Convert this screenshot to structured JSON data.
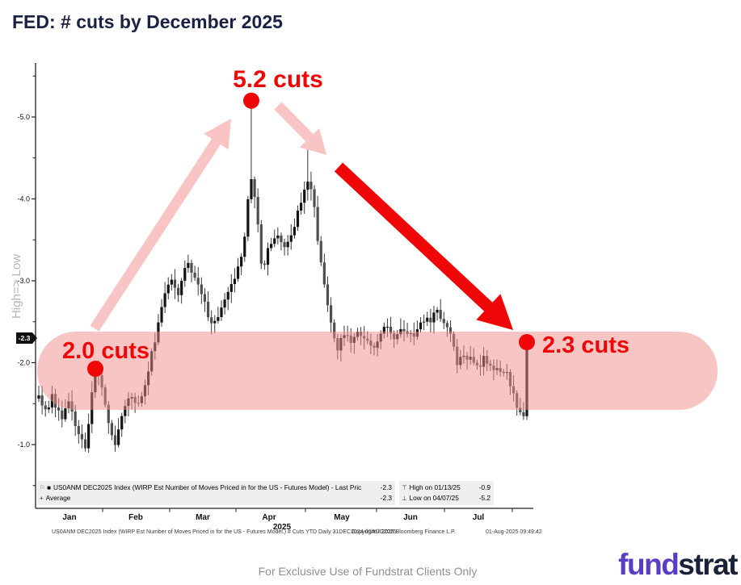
{
  "title": "FED: # cuts by December 2025",
  "colors": {
    "accent_red": "#ef0606",
    "pink_band": "rgba(242,139,139,0.50)",
    "pink_arrow": "rgba(244,148,148,0.55)",
    "title_navy": "#1b2142",
    "logo_purple": "#5b3cc4",
    "logo_navy": "#1a2238",
    "axis_gray": "#b5b5b5"
  },
  "chart_data": {
    "type": "candlestick",
    "title": "FED: # cuts by December 2025",
    "period": "Daily 31DEC2024-01AUG2025",
    "y_axis": {
      "label": "High=> Low",
      "inverted": true,
      "tick_values": [
        -5,
        -4,
        -3,
        -2,
        -1
      ],
      "tick_labels": [
        "-5.0",
        "-4.0",
        "-3.0",
        "-2.0",
        "-1.0"
      ],
      "minor_tick_values": [
        -5.5,
        -4.5,
        -3.5,
        -2.5,
        -1.5,
        -0.5
      ],
      "last_price_tag": "-2.3"
    },
    "x_axis": {
      "month_labels": [
        "Jan",
        "Feb",
        "Mar",
        "Apr",
        "May",
        "Jun",
        "Jul"
      ],
      "year_label": "2025"
    },
    "series": {
      "name": "US0ANM DEC2025 Index (WIRP Est Number of Moves Priced in for the US - Futures Model)",
      "last_price": -2.3,
      "average": -2.3,
      "high": {
        "date": "01/13/25",
        "value": -0.9
      },
      "low": {
        "date": "04/07/25",
        "value": -5.2
      },
      "bar_count": 148,
      "close_path": [
        [
          0.0,
          -1.6
        ],
        [
          0.012,
          -1.38
        ],
        [
          0.028,
          -1.58
        ],
        [
          0.045,
          -1.32
        ],
        [
          0.062,
          -1.52
        ],
        [
          0.078,
          -1.18
        ],
        [
          0.095,
          -0.98
        ],
        [
          0.105,
          -1.35
        ],
        [
          0.115,
          -2.0
        ],
        [
          0.126,
          -1.82
        ],
        [
          0.14,
          -1.3
        ],
        [
          0.155,
          -0.95
        ],
        [
          0.168,
          -1.28
        ],
        [
          0.185,
          -1.58
        ],
        [
          0.205,
          -1.52
        ],
        [
          0.222,
          -1.85
        ],
        [
          0.24,
          -2.35
        ],
        [
          0.258,
          -2.88
        ],
        [
          0.272,
          -3.05
        ],
        [
          0.285,
          -2.82
        ],
        [
          0.302,
          -3.25
        ],
        [
          0.32,
          -3.05
        ],
        [
          0.338,
          -2.82
        ],
        [
          0.352,
          -2.48
        ],
        [
          0.368,
          -2.58
        ],
        [
          0.383,
          -2.78
        ],
        [
          0.398,
          -3.02
        ],
        [
          0.412,
          -3.18
        ],
        [
          0.424,
          -3.65
        ],
        [
          0.433,
          -4.3
        ],
        [
          0.442,
          -4.05
        ],
        [
          0.45,
          -3.6
        ],
        [
          0.458,
          -3.05
        ],
        [
          0.47,
          -3.38
        ],
        [
          0.488,
          -3.52
        ],
        [
          0.508,
          -3.42
        ],
        [
          0.524,
          -3.68
        ],
        [
          0.538,
          -3.95
        ],
        [
          0.549,
          -4.25
        ],
        [
          0.56,
          -4.08
        ],
        [
          0.572,
          -3.5
        ],
        [
          0.585,
          -3.0
        ],
        [
          0.598,
          -2.48
        ],
        [
          0.612,
          -2.15
        ],
        [
          0.625,
          -2.38
        ],
        [
          0.64,
          -2.2
        ],
        [
          0.655,
          -2.42
        ],
        [
          0.67,
          -2.26
        ],
        [
          0.685,
          -2.15
        ],
        [
          0.7,
          -2.32
        ],
        [
          0.715,
          -2.46
        ],
        [
          0.73,
          -2.3
        ],
        [
          0.748,
          -2.4
        ],
        [
          0.765,
          -2.3
        ],
        [
          0.782,
          -2.46
        ],
        [
          0.8,
          -2.52
        ],
        [
          0.815,
          -2.62
        ],
        [
          0.828,
          -2.55
        ],
        [
          0.842,
          -2.42
        ],
        [
          0.856,
          -2.0
        ],
        [
          0.87,
          -2.1
        ],
        [
          0.885,
          -2.04
        ],
        [
          0.9,
          -1.96
        ],
        [
          0.915,
          -2.06
        ],
        [
          0.93,
          -1.92
        ],
        [
          0.945,
          -1.86
        ],
        [
          0.96,
          -1.92
        ],
        [
          0.975,
          -1.52
        ],
        [
          0.993,
          -1.32
        ],
        [
          1.0,
          -2.28
        ]
      ],
      "wick_overrides": [
        [
          15,
          -0.9
        ],
        [
          64,
          -5.2
        ],
        [
          81,
          -4.6
        ],
        [
          146,
          -1.3
        ],
        [
          147,
          -1.3
        ]
      ]
    },
    "annotations": {
      "peak_label": "5.2 cuts",
      "start_label": "2.0 cuts",
      "end_label": "2.3 cuts",
      "peak_value": -5.2,
      "start_value": -2.0,
      "end_value": -2.3
    }
  },
  "legend": {
    "main": {
      "series_label": "US0ANM DEC2025 Index (WIRP Est Number of Moves Priced in for the US - Futures Model) - Last Pric",
      "series_value": "-2.3",
      "average_label": "Average",
      "average_value": "-2.3"
    },
    "range": {
      "high_label": "High on 01/13/25",
      "high_value": "-0.9",
      "low_label": "Low on 04/07/25",
      "low_value": "-5.2"
    }
  },
  "footnote": {
    "left": "US0ANM DEC2025 Index (WIRP Est Number of Moves Priced in for the US - Futures Model.) # Cuts YTD  Daily 31DEC2024-01AUG2025",
    "copyright": "Copyright© 2025 Bloomberg Finance L.P.",
    "timestamp": "01-Aug-2025 09:49:42"
  },
  "footer": {
    "disclaimer": "For Exclusive Use of Fundstrat Clients Only",
    "logo_first": "fund",
    "logo_second": "strat"
  }
}
